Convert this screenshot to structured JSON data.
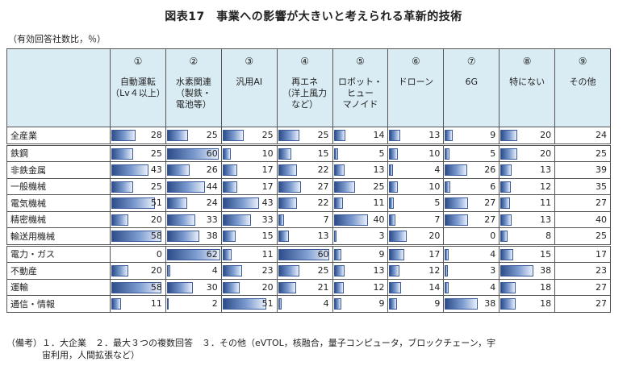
{
  "title": "図表17　事業への影響が大きいと考えられる革新的技術",
  "unit": "（有効回答社数比，％）",
  "note": "（備考）１．大企業　２．最大３つの複数回答　３．その他（eVTOL，核融合，量子コンピュータ，ブロックチェーン，宇\n　　　　宙利用，人間拡張など）",
  "chart_data": {
    "type": "table",
    "columns": [
      {
        "num": "①",
        "label": "自動運転\n（Lv４以上）"
      },
      {
        "num": "②",
        "label": "水素関連\n（製鉄・\n電池等）"
      },
      {
        "num": "③",
        "label": "汎用AI"
      },
      {
        "num": "④",
        "label": "再エネ\n（洋上風力\nなど）"
      },
      {
        "num": "⑤",
        "label": "ロボット・\nヒュー\nマノイド"
      },
      {
        "num": "⑥",
        "label": "ドローン"
      },
      {
        "num": "⑦",
        "label": "6G"
      },
      {
        "num": "⑧",
        "label": "特にない"
      },
      {
        "num": "⑨",
        "label": "その他"
      }
    ],
    "rows": [
      {
        "label": "全産業",
        "values": [
          28,
          25,
          25,
          25,
          14,
          13,
          9,
          20,
          24
        ]
      },
      {
        "label": "鉄鋼",
        "values": [
          25,
          60,
          10,
          15,
          5,
          10,
          5,
          20,
          25
        ]
      },
      {
        "label": "非鉄金属",
        "values": [
          43,
          26,
          17,
          22,
          13,
          4,
          26,
          13,
          39
        ]
      },
      {
        "label": "一般機械",
        "values": [
          25,
          44,
          17,
          27,
          25,
          10,
          6,
          12,
          35
        ]
      },
      {
        "label": "電気機械",
        "values": [
          51,
          24,
          43,
          22,
          11,
          5,
          27,
          11,
          27
        ]
      },
      {
        "label": "精密機械",
        "values": [
          20,
          33,
          33,
          7,
          40,
          7,
          27,
          13,
          40
        ]
      },
      {
        "label": "輸送用機械",
        "values": [
          58,
          38,
          15,
          13,
          3,
          20,
          0,
          8,
          25
        ]
      },
      {
        "label": "電力・ガス",
        "values": [
          0,
          62,
          11,
          60,
          9,
          17,
          4,
          15,
          17
        ]
      },
      {
        "label": "不動産",
        "values": [
          20,
          4,
          23,
          25,
          13,
          12,
          3,
          38,
          23
        ]
      },
      {
        "label": "運輸",
        "values": [
          58,
          30,
          20,
          21,
          12,
          14,
          4,
          18,
          27
        ]
      },
      {
        "label": "通信・情報",
        "values": [
          11,
          2,
          51,
          4,
          9,
          9,
          38,
          18,
          27
        ]
      }
    ],
    "bar_max": 62,
    "bar_columns": 8
  }
}
